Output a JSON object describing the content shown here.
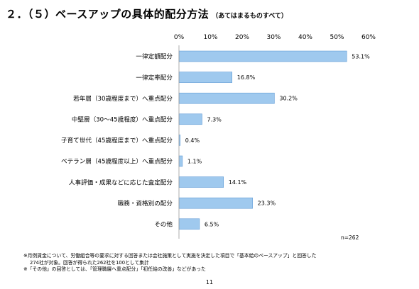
{
  "heading": {
    "main": "２．（５）ベースアップの具体的配分方法",
    "sub": "（あてはまるものすべて）"
  },
  "chart_data": {
    "type": "bar",
    "orientation": "horizontal",
    "categories": [
      "一律定額配分",
      "一律定率配分",
      "若年層（30歳程度まで）へ重点配分",
      "中堅層（30～45歳程度）へ重点配分",
      "子育て世代（45歳程度まで）へ重点配分",
      "ベテラン層（45歳程度以上）へ重点配分",
      "人事評価・成果などに応じた査定配分",
      "職務・資格別の配分",
      "その他"
    ],
    "values": [
      53.1,
      16.8,
      30.2,
      7.3,
      0.4,
      1.1,
      14.1,
      23.3,
      6.5
    ],
    "value_labels": [
      "53.1%",
      "16.8%",
      "30.2%",
      "7.3%",
      "0.4%",
      "1.1%",
      "14.1%",
      "23.3%",
      "6.5%"
    ],
    "x_ticks": [
      "0%",
      "10%",
      "20%",
      "30%",
      "40%",
      "50%",
      "60%"
    ],
    "xlim": [
      0,
      60
    ],
    "axis_position": "top",
    "grid": false,
    "bar_color": "#9fc9ee",
    "bar_edge_color": "#4f8fd0"
  },
  "sample_note": "n=262",
  "notes": [
    "※月例賃金について、労働組合等の要求に対する回答または会社施策として実施を決定した項目で「基本給のベースアップ」と回答した",
    "274社が対象。回答が得られた262社を100として集計",
    "※「その他」の回答としては、「管理職層へ重点配分」「初任給の改善」などがあった"
  ],
  "page_number": "11"
}
